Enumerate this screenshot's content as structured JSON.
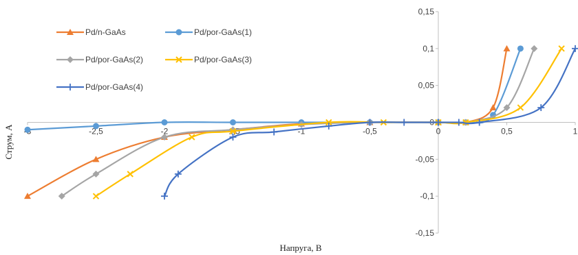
{
  "chart_data": {
    "type": "line",
    "xlabel": "Напруга, В",
    "ylabel": "Струм, А",
    "xlim": [
      -3,
      1
    ],
    "ylim": [
      -0.15,
      0.15
    ],
    "x_ticks": [
      {
        "value": -3,
        "label": "-3"
      },
      {
        "value": -2.5,
        "label": "-2,5"
      },
      {
        "value": -2,
        "label": "-2"
      },
      {
        "value": -1.5,
        "label": "-1,5"
      },
      {
        "value": -1,
        "label": "-1"
      },
      {
        "value": -0.5,
        "label": "-0,5"
      },
      {
        "value": 0,
        "label": "0"
      },
      {
        "value": 0.5,
        "label": "0,5"
      },
      {
        "value": 1,
        "label": "1"
      }
    ],
    "y_ticks": [
      {
        "value": 0.15,
        "label": "0,15"
      },
      {
        "value": 0.1,
        "label": "0,1"
      },
      {
        "value": 0.05,
        "label": "0,05"
      },
      {
        "value": 0,
        "label": "0"
      },
      {
        "value": -0.05,
        "label": "-0,05"
      },
      {
        "value": -0.1,
        "label": "-0,1"
      },
      {
        "value": -0.15,
        "label": "-0,15"
      }
    ],
    "grid": false,
    "legend_position": "top-left",
    "series": [
      {
        "name": "Pd/n-GaAs",
        "color": "#ED7D31",
        "marker": "triangle",
        "points": [
          [
            -3,
            -0.1
          ],
          [
            -2.5,
            -0.05
          ],
          [
            -2,
            -0.02
          ],
          [
            -1.5,
            -0.01
          ],
          [
            -1,
            -0.002
          ],
          [
            -0.5,
            0
          ],
          [
            0,
            0
          ],
          [
            0.2,
            0
          ],
          [
            0.4,
            0.02
          ],
          [
            0.5,
            0.1
          ]
        ]
      },
      {
        "name": "Pd/por-GaAs(1)",
        "color": "#5B9BD5",
        "marker": "circle",
        "points": [
          [
            -3,
            -0.01
          ],
          [
            -2.5,
            -0.005
          ],
          [
            -2,
            0
          ],
          [
            -1.5,
            0
          ],
          [
            -1,
            0
          ],
          [
            -0.5,
            0
          ],
          [
            0,
            0
          ],
          [
            0.2,
            0
          ],
          [
            0.4,
            0.01
          ],
          [
            0.6,
            0.1
          ]
        ]
      },
      {
        "name": "Pd/por-GaAs(2)",
        "color": "#A5A5A5",
        "marker": "diamond",
        "points": [
          [
            -2.75,
            -0.1
          ],
          [
            -2.5,
            -0.07
          ],
          [
            -2,
            -0.02
          ],
          [
            -1.5,
            -0.01
          ],
          [
            -1,
            -0.003
          ],
          [
            -0.5,
            0
          ],
          [
            0,
            0
          ],
          [
            0.2,
            0
          ],
          [
            0.5,
            0.02
          ],
          [
            0.7,
            0.1
          ]
        ]
      },
      {
        "name": "Pd/por-GaAs(3)",
        "color": "#FFC000",
        "marker": "x",
        "points": [
          [
            -2.5,
            -0.1
          ],
          [
            -2.25,
            -0.07
          ],
          [
            -1.8,
            -0.02
          ],
          [
            -1.5,
            -0.012
          ],
          [
            -0.8,
            0
          ],
          [
            -0.4,
            0
          ],
          [
            0,
            0
          ],
          [
            0.2,
            0
          ],
          [
            0.6,
            0.02
          ],
          [
            0.9,
            0.1
          ]
        ]
      },
      {
        "name": "Pd/por-GaAs(4)",
        "color": "#4472C4",
        "marker": "plus",
        "points": [
          [
            -2,
            -0.1
          ],
          [
            -1.9,
            -0.07
          ],
          [
            -1.5,
            -0.02
          ],
          [
            -1.2,
            -0.013
          ],
          [
            -0.8,
            -0.005
          ],
          [
            -0.5,
            0
          ],
          [
            -0.25,
            0
          ],
          [
            0,
            0
          ],
          [
            0.15,
            0
          ],
          [
            0.3,
            0
          ],
          [
            0.75,
            0.02
          ],
          [
            1,
            0.1
          ]
        ]
      }
    ]
  }
}
